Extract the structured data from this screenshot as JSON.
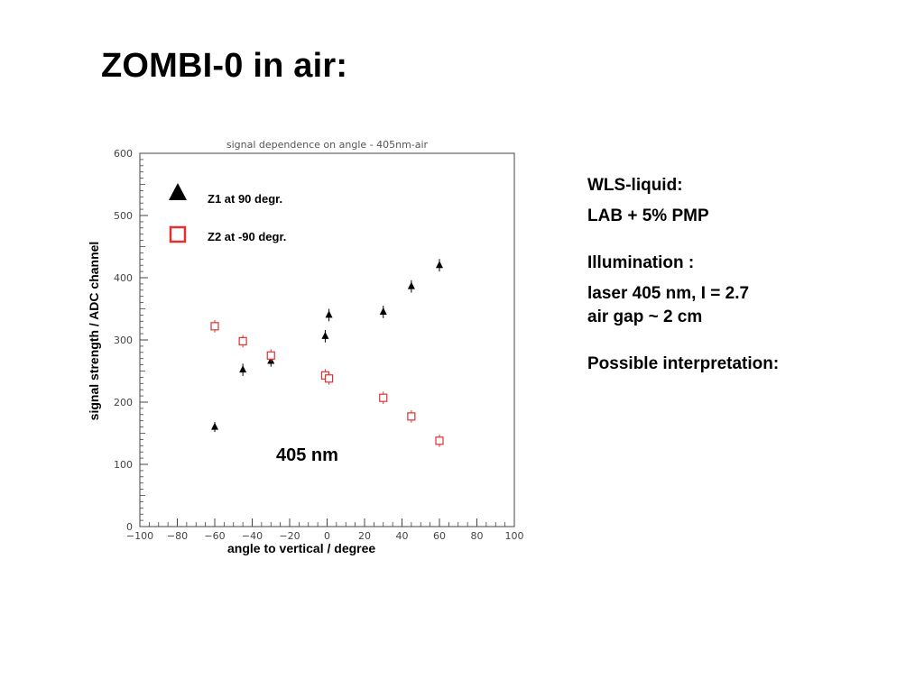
{
  "slide": {
    "title": "ZOMBI-0 in air:"
  },
  "info": {
    "line1": "WLS-liquid:",
    "line2": "LAB + 5% PMP",
    "line3": "Illumination :",
    "line4": "laser 405 nm,  I = 2.7",
    "line5": "air gap ~ 2 cm",
    "line6": "Possible interpretation:"
  },
  "annotation": "405 nm",
  "chart_data": {
    "type": "scatter",
    "title": "signal dependence on angle - 405nm-air",
    "xlabel": "angle to vertical / degree",
    "ylabel": "signal strength / ADC channel",
    "xlim": [
      -100,
      100
    ],
    "ylim": [
      0,
      600
    ],
    "xticks": [
      -100,
      -80,
      -60,
      -40,
      -20,
      0,
      20,
      40,
      60,
      80,
      100
    ],
    "yticks": [
      0,
      100,
      200,
      300,
      400,
      500,
      600
    ],
    "legend_position": "top-left",
    "series": [
      {
        "name": "Z1 at  90 degr.",
        "marker": "filled-triangle",
        "color": "#000000",
        "x": [
          -60,
          -45,
          -30,
          -1,
          1,
          30,
          45,
          60
        ],
        "y": [
          160,
          252,
          266,
          306,
          340,
          345,
          386,
          420
        ],
        "yerr": [
          8,
          10,
          9,
          10,
          10,
          10,
          10,
          10
        ]
      },
      {
        "name": "Z2 at -90 degr.",
        "marker": "open-square",
        "color": "#e03030",
        "x": [
          -60,
          -45,
          -30,
          -1,
          1,
          30,
          45,
          60
        ],
        "y": [
          322,
          298,
          275,
          243,
          238,
          207,
          177,
          138
        ],
        "yerr": [
          10,
          10,
          10,
          10,
          10,
          10,
          10,
          10
        ]
      }
    ]
  }
}
